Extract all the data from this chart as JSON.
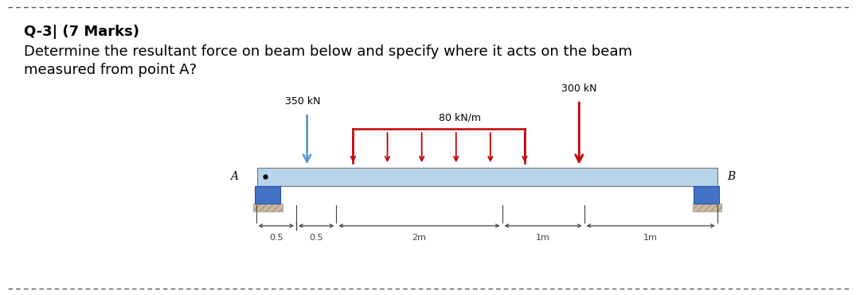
{
  "title_line1": "Q-3| (7 Marks)",
  "title_line2": "Determine the resultant force on beam below and specify where it acts on the beam",
  "title_line3": "measured from point A?",
  "force_350_label": "350 kN",
  "force_300_label": "300 kN",
  "dist_load_label": "80 kN/m",
  "dim_labels": [
    "0.5",
    "0.5",
    "2m",
    "1m",
    "1m"
  ],
  "label_A": "A",
  "label_B": "B",
  "beam_color": "#b8d4e8",
  "beam_edge": "#777777",
  "support_color": "#4472c4",
  "support_edge": "#2255aa",
  "hatch_color": "#c8a882",
  "arrow_blue": "#5b9bd5",
  "arrow_red": "#c00000",
  "dist_load_color": "#c00000",
  "dim_line_color": "#444444",
  "background": "#ffffff",
  "text_color": "#000000",
  "title_bold_size": 13,
  "body_size": 13,
  "label_size": 10,
  "annot_size": 9,
  "dim_size": 8
}
